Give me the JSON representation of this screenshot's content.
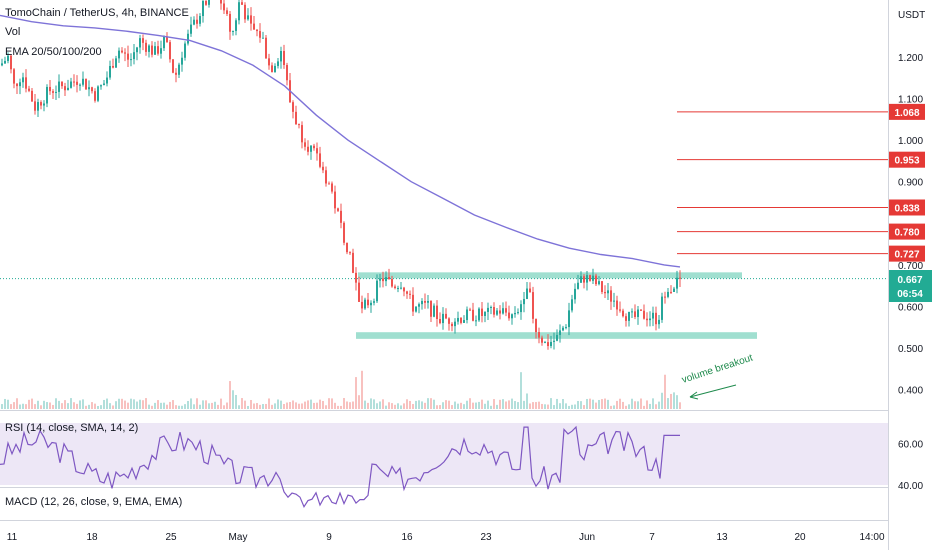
{
  "header": {
    "title": "TomoChain / TetherUS, 4h, BINANCE",
    "vol_label": "Vol",
    "ema_label": "EMA 20/50/100/200"
  },
  "annotation": {
    "text": "volume breakout"
  },
  "colors": {
    "up": "#26a69a",
    "down": "#ef5350",
    "ema": "#7e73d8",
    "zone": "#8fd9c8",
    "level": "#e53935",
    "last_price": "#22ab94",
    "rsi_line": "#7e57c2",
    "rsi_band": "#ede7f6"
  },
  "chart_data": [
    {
      "type": "candlestick",
      "title": "TomoChain / TetherUS, 4h, BINANCE",
      "price_axis": {
        "unit": "USDT",
        "ticks": [
          "1.200",
          "1.100",
          "1.000",
          "0.900",
          "0.700",
          "0.600",
          "0.500",
          "0.400"
        ],
        "tick_values": [
          1.2,
          1.1,
          1.0,
          0.9,
          0.7,
          0.6,
          0.5,
          0.4
        ]
      },
      "time_axis": {
        "ticks": [
          "11",
          "18",
          "25",
          "May",
          "9",
          "16",
          "23",
          "Jun",
          "7",
          "13",
          "20",
          "14:00"
        ]
      },
      "ema_200": [
        [
          0,
          1.3
        ],
        [
          2,
          1.285
        ],
        [
          4,
          1.275
        ],
        [
          6,
          1.27
        ],
        [
          8,
          1.262
        ],
        [
          10,
          1.252
        ],
        [
          12,
          1.24
        ],
        [
          14,
          1.215
        ],
        [
          16,
          1.18
        ],
        [
          18,
          1.13
        ],
        [
          20,
          1.06
        ],
        [
          22,
          1.0
        ],
        [
          24,
          0.95
        ],
        [
          26,
          0.9
        ],
        [
          28,
          0.86
        ],
        [
          30,
          0.82
        ],
        [
          32,
          0.79
        ],
        [
          34,
          0.762
        ],
        [
          36,
          0.74
        ],
        [
          38,
          0.725
        ],
        [
          40,
          0.715
        ],
        [
          42,
          0.7
        ],
        [
          43,
          0.695
        ]
      ],
      "resistance_levels": [
        1.068,
        0.953,
        0.838,
        0.78,
        0.727
      ],
      "zones": [
        {
          "name": "resistance",
          "low": 0.672,
          "high": 0.682
        },
        {
          "name": "support",
          "low": 0.522,
          "high": 0.538
        }
      ],
      "last_price": "0.667",
      "countdown": "06:54"
    },
    {
      "type": "line",
      "title": "RSI (14, close, SMA, 14, 2)",
      "band": [
        40,
        70
      ],
      "ticks": [
        "60.00",
        "40.00"
      ]
    },
    {
      "type": "line",
      "title": "MACD (12, 26, close, 9, EMA, EMA)"
    }
  ]
}
